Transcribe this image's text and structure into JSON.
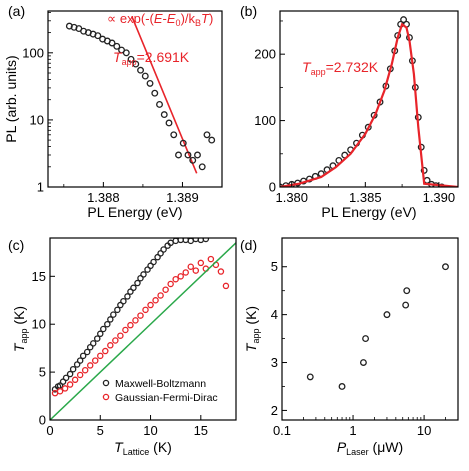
{
  "chart_data": [
    {
      "panel": "(a)",
      "type": "scatter",
      "xlabel": "PL Energy (eV)",
      "ylabel": "PL (arb. units)",
      "yscale": "log",
      "xlim": [
        1.3873,
        1.3895
      ],
      "ylim": [
        1,
        420
      ],
      "xticks": [
        1.388,
        1.389
      ],
      "xtick_labels": [
        "1.388",
        "1.389"
      ],
      "yticks": [
        1,
        10,
        100
      ],
      "ytick_labels": [
        "1",
        "10",
        "100"
      ],
      "annotation_formula": "∝ exp(-(E-E0)/kBT)",
      "annotation_formula_parts": {
        "a": "∝ exp(-(",
        "E": "E",
        "b": "-",
        "E0": "E",
        "sub0": "0",
        "c": ")/k",
        "subB": "B",
        "T": "T",
        "d": ")"
      },
      "annotation_t": {
        "T": "T",
        "sub": "app",
        "value": "=2.691K"
      },
      "fit_line": {
        "x": [
          1.38836,
          1.38918
        ],
        "y": [
          350,
          1.6
        ]
      },
      "points": {
        "x": [
          1.38757,
          1.38763,
          1.38769,
          1.38775,
          1.38781,
          1.38787,
          1.38793,
          1.38799,
          1.38805,
          1.38811,
          1.38817,
          1.38823,
          1.38829,
          1.38835,
          1.38841,
          1.38847,
          1.38853,
          1.38859,
          1.38865,
          1.38871,
          1.38877,
          1.38883,
          1.38889,
          1.38895,
          1.38901,
          1.38907,
          1.38913,
          1.38919,
          1.38925,
          1.38931,
          1.38937
        ],
        "y": [
          250,
          240,
          230,
          210,
          200,
          190,
          180,
          160,
          150,
          140,
          125,
          110,
          100,
          80,
          68,
          55,
          45,
          35,
          25,
          17,
          12,
          9,
          6,
          3,
          4.5,
          3,
          2.5,
          3,
          2,
          6,
          5
        ]
      }
    },
    {
      "panel": "(b)",
      "type": "scatter",
      "xlabel": "PL Energy (eV)",
      "ylabel": "",
      "xlim": [
        1.3792,
        1.3913
      ],
      "ylim": [
        0,
        265
      ],
      "xticks": [
        1.38,
        1.385,
        1.39
      ],
      "xtick_labels": [
        "1.380",
        "1.385",
        "1.390"
      ],
      "yticks": [
        0,
        100,
        200
      ],
      "ytick_labels": [
        "0",
        "100",
        "200"
      ],
      "annotation_t": {
        "T": "T",
        "sub": "app",
        "value": "=2.732K"
      },
      "fit_curve": {
        "x": [
          1.3792,
          1.3805,
          1.382,
          1.383,
          1.384,
          1.385,
          1.3857,
          1.3863,
          1.3868,
          1.3872,
          1.3875,
          1.3878,
          1.388,
          1.3883,
          1.3886,
          1.389,
          1.3913
        ],
        "y": [
          0,
          5,
          15,
          30,
          50,
          80,
          110,
          145,
          185,
          225,
          245,
          240,
          220,
          170,
          90,
          5,
          0
        ]
      },
      "points": {
        "x": [
          1.3792,
          1.3796,
          1.38,
          1.3804,
          1.3808,
          1.3812,
          1.3816,
          1.382,
          1.3824,
          1.3828,
          1.3832,
          1.3836,
          1.384,
          1.3844,
          1.3848,
          1.3852,
          1.3856,
          1.386,
          1.3864,
          1.3867,
          1.387,
          1.3872,
          1.3874,
          1.3876,
          1.3878,
          1.388,
          1.3882,
          1.3884,
          1.3886,
          1.3888,
          1.389,
          1.3892,
          1.3895,
          1.3898,
          1.3902
        ],
        "y": [
          0,
          2,
          4,
          6,
          9,
          12,
          16,
          20,
          26,
          32,
          40,
          48,
          56,
          66,
          78,
          90,
          108,
          128,
          152,
          178,
          205,
          228,
          245,
          252,
          245,
          225,
          190,
          150,
          105,
          60,
          25,
          10,
          4,
          2,
          0
        ]
      }
    },
    {
      "panel": "(c)",
      "type": "scatter",
      "xlabel_main": "T",
      "xlabel_sub": "Lattice",
      "xlabel_unit": " (K)",
      "ylabel_main": "T",
      "ylabel_sub": "app",
      "ylabel_unit": " (K)",
      "xlim": [
        0,
        18.5
      ],
      "ylim": [
        0,
        19
      ],
      "xticks": [
        0,
        5,
        10,
        15
      ],
      "yticks": [
        0,
        5,
        10,
        15
      ],
      "legend_placement": "bottom-right",
      "series": [
        {
          "name": "Maxwell-Boltzmann",
          "color": "#222222",
          "x": [
            0.5,
            0.8,
            1.0,
            1.3,
            1.6,
            2.0,
            2.3,
            2.7,
            3.0,
            3.3,
            3.7,
            4.0,
            4.3,
            4.7,
            5.0,
            5.3,
            5.7,
            6.0,
            6.3,
            6.7,
            7.0,
            7.3,
            7.7,
            8.0,
            8.3,
            8.7,
            9.0,
            9.3,
            9.7,
            10.0,
            10.3,
            10.7,
            11.0,
            11.3,
            11.7,
            12.0,
            12.5,
            13.0,
            13.5,
            14.0,
            14.5,
            15.0,
            15.5
          ],
          "y": [
            3.2,
            3.5,
            3.6,
            4.0,
            4.4,
            4.8,
            5.3,
            5.8,
            6.2,
            6.7,
            7.1,
            7.6,
            8.0,
            8.5,
            9.0,
            9.5,
            10.0,
            10.5,
            11.0,
            11.5,
            12.0,
            12.4,
            12.9,
            13.4,
            13.8,
            14.3,
            14.8,
            15.2,
            15.7,
            16.1,
            16.5,
            17.0,
            17.4,
            17.8,
            18.2,
            18.5,
            18.7,
            18.8,
            18.8,
            18.7,
            18.9,
            18.8,
            18.9
          ]
        },
        {
          "name": "Gaussian-Fermi-Dirac",
          "color": "#e8242a",
          "x": [
            0.5,
            1.0,
            1.5,
            2.0,
            2.5,
            3.0,
            3.5,
            4.0,
            4.5,
            5.0,
            5.5,
            6.0,
            6.5,
            7.0,
            7.5,
            8.0,
            8.5,
            9.0,
            9.5,
            10.0,
            10.5,
            11.0,
            11.5,
            12.0,
            12.5,
            13.0,
            13.5,
            14.0,
            14.5,
            15.0,
            15.5,
            16.0,
            16.5,
            17.0,
            17.5
          ],
          "y": [
            2.8,
            3.0,
            3.3,
            3.7,
            4.2,
            4.7,
            5.2,
            5.7,
            6.2,
            6.7,
            7.2,
            7.8,
            8.3,
            8.8,
            9.4,
            9.9,
            10.4,
            10.9,
            11.5,
            12.0,
            12.5,
            13.0,
            13.6,
            14.2,
            14.7,
            15.0,
            15.4,
            16.0,
            15.6,
            16.4,
            15.8,
            16.8,
            16.2,
            15.5,
            14.0
          ]
        }
      ],
      "reference_line": {
        "x": [
          0,
          18.5
        ],
        "y": [
          0,
          18.5
        ],
        "color": "#2aa84a"
      }
    },
    {
      "panel": "(d)",
      "type": "scatter",
      "xlabel_main": "P",
      "xlabel_sub": "Laser",
      "xlabel_unit": " (μW)",
      "ylabel_main": "T",
      "ylabel_sub": "app",
      "ylabel_unit": " (K)",
      "xscale": "log",
      "xlim": [
        0.1,
        30
      ],
      "ylim": [
        1.8,
        5.6
      ],
      "xticks": [
        0.1,
        1,
        10
      ],
      "xtick_labels": [
        "0.1",
        "1",
        "10"
      ],
      "yticks": [
        2,
        3,
        4,
        5
      ],
      "ytick_labels": [
        "2",
        "3",
        "4",
        "5"
      ],
      "points": {
        "x": [
          0.25,
          0.7,
          1.4,
          1.5,
          3.0,
          5.5,
          5.7,
          20.0
        ],
        "y": [
          2.7,
          2.5,
          3.0,
          3.5,
          4.0,
          4.2,
          4.5,
          5.0
        ]
      }
    }
  ]
}
